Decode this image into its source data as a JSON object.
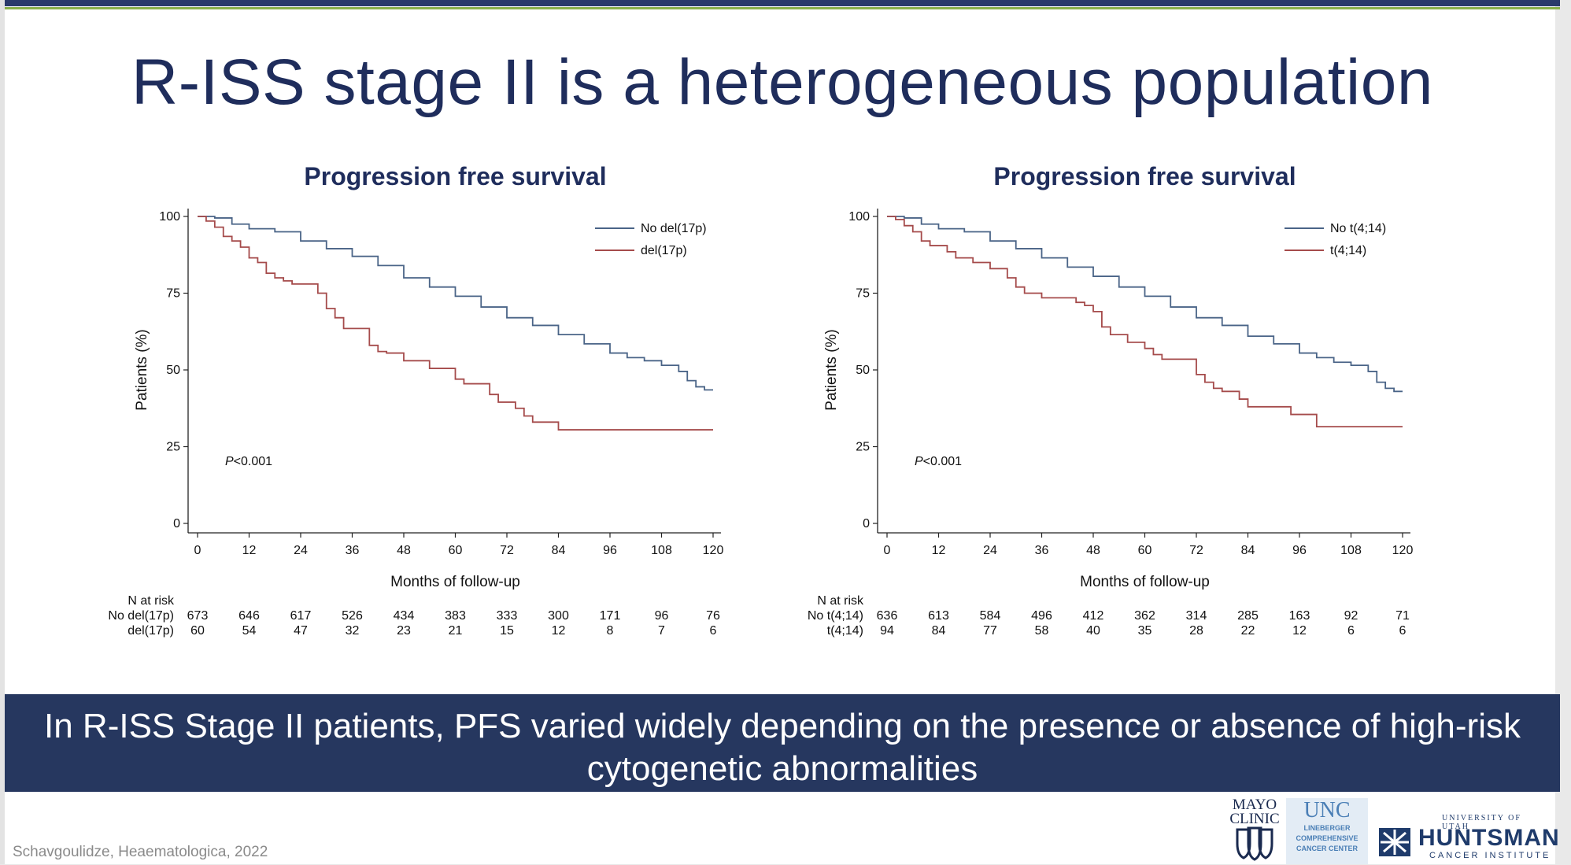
{
  "slide_title": "R-ISS stage II is a heterogeneous population",
  "banner": "In R-ISS Stage II patients, PFS varied widely depending on the presence or absence of high-risk cytogenetic abnormalities",
  "citation": "Schavgoulidze, Heaematologica, 2022",
  "logos": {
    "mayo": [
      "MAYO",
      "CLINIC"
    ],
    "unc": "UNC",
    "unc_sub": [
      "LINEBERGER",
      "COMPREHENSIVE",
      "CANCER CENTER"
    ],
    "huntsman_top": "UNIVERSITY OF UTAH",
    "huntsman": "HUNTSMAN",
    "huntsman_sub": "CANCER INSTITUTE"
  },
  "colors": {
    "navy": "#1f2d5c",
    "series_blue": "#4a6487",
    "series_red": "#a54b4b",
    "banner_bg": "#26375f"
  },
  "chart_data": [
    {
      "type": "line",
      "title": "Progression free survival",
      "xlabel": "Months of follow-up",
      "ylabel": "Patients (%)",
      "xlim": [
        0,
        120
      ],
      "ylim": [
        0,
        100
      ],
      "xticks": [
        0,
        12,
        24,
        36,
        48,
        60,
        72,
        84,
        96,
        108,
        120
      ],
      "yticks": [
        0,
        25,
        50,
        75,
        100
      ],
      "annotation": "P<0.001",
      "legend_position": "top-right",
      "series": [
        {
          "name": "No del(17p)",
          "color": "#4a6487",
          "x": [
            0,
            4,
            8,
            12,
            18,
            24,
            30,
            36,
            42,
            48,
            54,
            60,
            66,
            72,
            78,
            84,
            90,
            96,
            100,
            104,
            108,
            112,
            114,
            116,
            118,
            120
          ],
          "y": [
            100,
            99.5,
            97.5,
            96,
            95,
            92,
            89.5,
            87,
            84,
            80,
            77,
            74,
            70.5,
            67,
            64.5,
            61.5,
            58.5,
            55.5,
            54,
            53,
            51.5,
            49.5,
            46.5,
            44.5,
            43.5,
            43.5
          ]
        },
        {
          "name": "del(17p)",
          "color": "#a54b4b",
          "x": [
            0,
            2,
            4,
            6,
            8,
            10,
            12,
            14,
            16,
            18,
            20,
            22,
            26,
            28,
            30,
            32,
            34,
            36,
            40,
            42,
            44,
            48,
            54,
            58,
            60,
            62,
            64,
            68,
            70,
            74,
            76,
            78,
            84,
            90,
            96,
            100,
            108,
            114,
            120
          ],
          "y": [
            100,
            98.5,
            96.5,
            93.5,
            92,
            90,
            86.5,
            85,
            81.5,
            80,
            79,
            78,
            78,
            75,
            70,
            67,
            63.5,
            63.5,
            58,
            56,
            55.5,
            53,
            50.5,
            50.5,
            47,
            45.5,
            45.5,
            42,
            39.5,
            37.5,
            35,
            33,
            30.5,
            30.5,
            30.5,
            30.5,
            30.5,
            30.5,
            30.5
          ]
        }
      ],
      "risk_table": {
        "header": "N at risk",
        "rows": [
          {
            "label": "No del(17p)",
            "values": [
              673,
              646,
              617,
              526,
              434,
              383,
              333,
              300,
              171,
              96,
              76
            ]
          },
          {
            "label": "del(17p)",
            "values": [
              60,
              54,
              47,
              32,
              23,
              21,
              15,
              12,
              8,
              7,
              6
            ]
          }
        ]
      }
    },
    {
      "type": "line",
      "title": "Progression free survival",
      "xlabel": "Months of follow-up",
      "ylabel": "Patients (%)",
      "xlim": [
        0,
        120
      ],
      "ylim": [
        0,
        100
      ],
      "xticks": [
        0,
        12,
        24,
        36,
        48,
        60,
        72,
        84,
        96,
        108,
        120
      ],
      "yticks": [
        0,
        25,
        50,
        75,
        100
      ],
      "annotation": "P<0.001",
      "legend_position": "top-right",
      "series": [
        {
          "name": "No t(4;14)",
          "color": "#4a6487",
          "x": [
            0,
            4,
            8,
            12,
            18,
            24,
            30,
            36,
            42,
            48,
            54,
            60,
            66,
            72,
            78,
            84,
            90,
            96,
            100,
            104,
            108,
            112,
            114,
            116,
            118,
            120
          ],
          "y": [
            100,
            99.5,
            97.5,
            96,
            95,
            92,
            89.5,
            86.5,
            83.5,
            80.5,
            77,
            74,
            70.5,
            67,
            64.5,
            61,
            58.5,
            55.5,
            54,
            52.5,
            51.5,
            49.5,
            46,
            44,
            43,
            43
          ]
        },
        {
          "name": "t(4;14)",
          "color": "#a54b4b",
          "x": [
            0,
            2,
            4,
            6,
            8,
            10,
            14,
            16,
            20,
            24,
            26,
            28,
            30,
            32,
            36,
            44,
            46,
            48,
            50,
            52,
            56,
            60,
            62,
            64,
            68,
            72,
            74,
            76,
            78,
            82,
            84,
            88,
            94,
            96,
            100,
            106,
            112,
            120
          ],
          "y": [
            100,
            99,
            97,
            95,
            92,
            90.5,
            88.5,
            86.5,
            85,
            83,
            83,
            80,
            77,
            75,
            73.5,
            72,
            71,
            69,
            64,
            61.5,
            59,
            57,
            55,
            53.5,
            53.5,
            48.5,
            46,
            44,
            43,
            40.5,
            38,
            38,
            35.5,
            35.5,
            31.5,
            31.5,
            31.5,
            31.5
          ]
        }
      ],
      "risk_table": {
        "header": "N at risk",
        "rows": [
          {
            "label": "No t(4;14)",
            "values": [
              636,
              613,
              584,
              496,
              412,
              362,
              314,
              285,
              163,
              92,
              71
            ]
          },
          {
            "label": "t(4;14)",
            "values": [
              94,
              84,
              77,
              58,
              40,
              35,
              28,
              22,
              12,
              6,
              6
            ]
          }
        ]
      }
    }
  ]
}
